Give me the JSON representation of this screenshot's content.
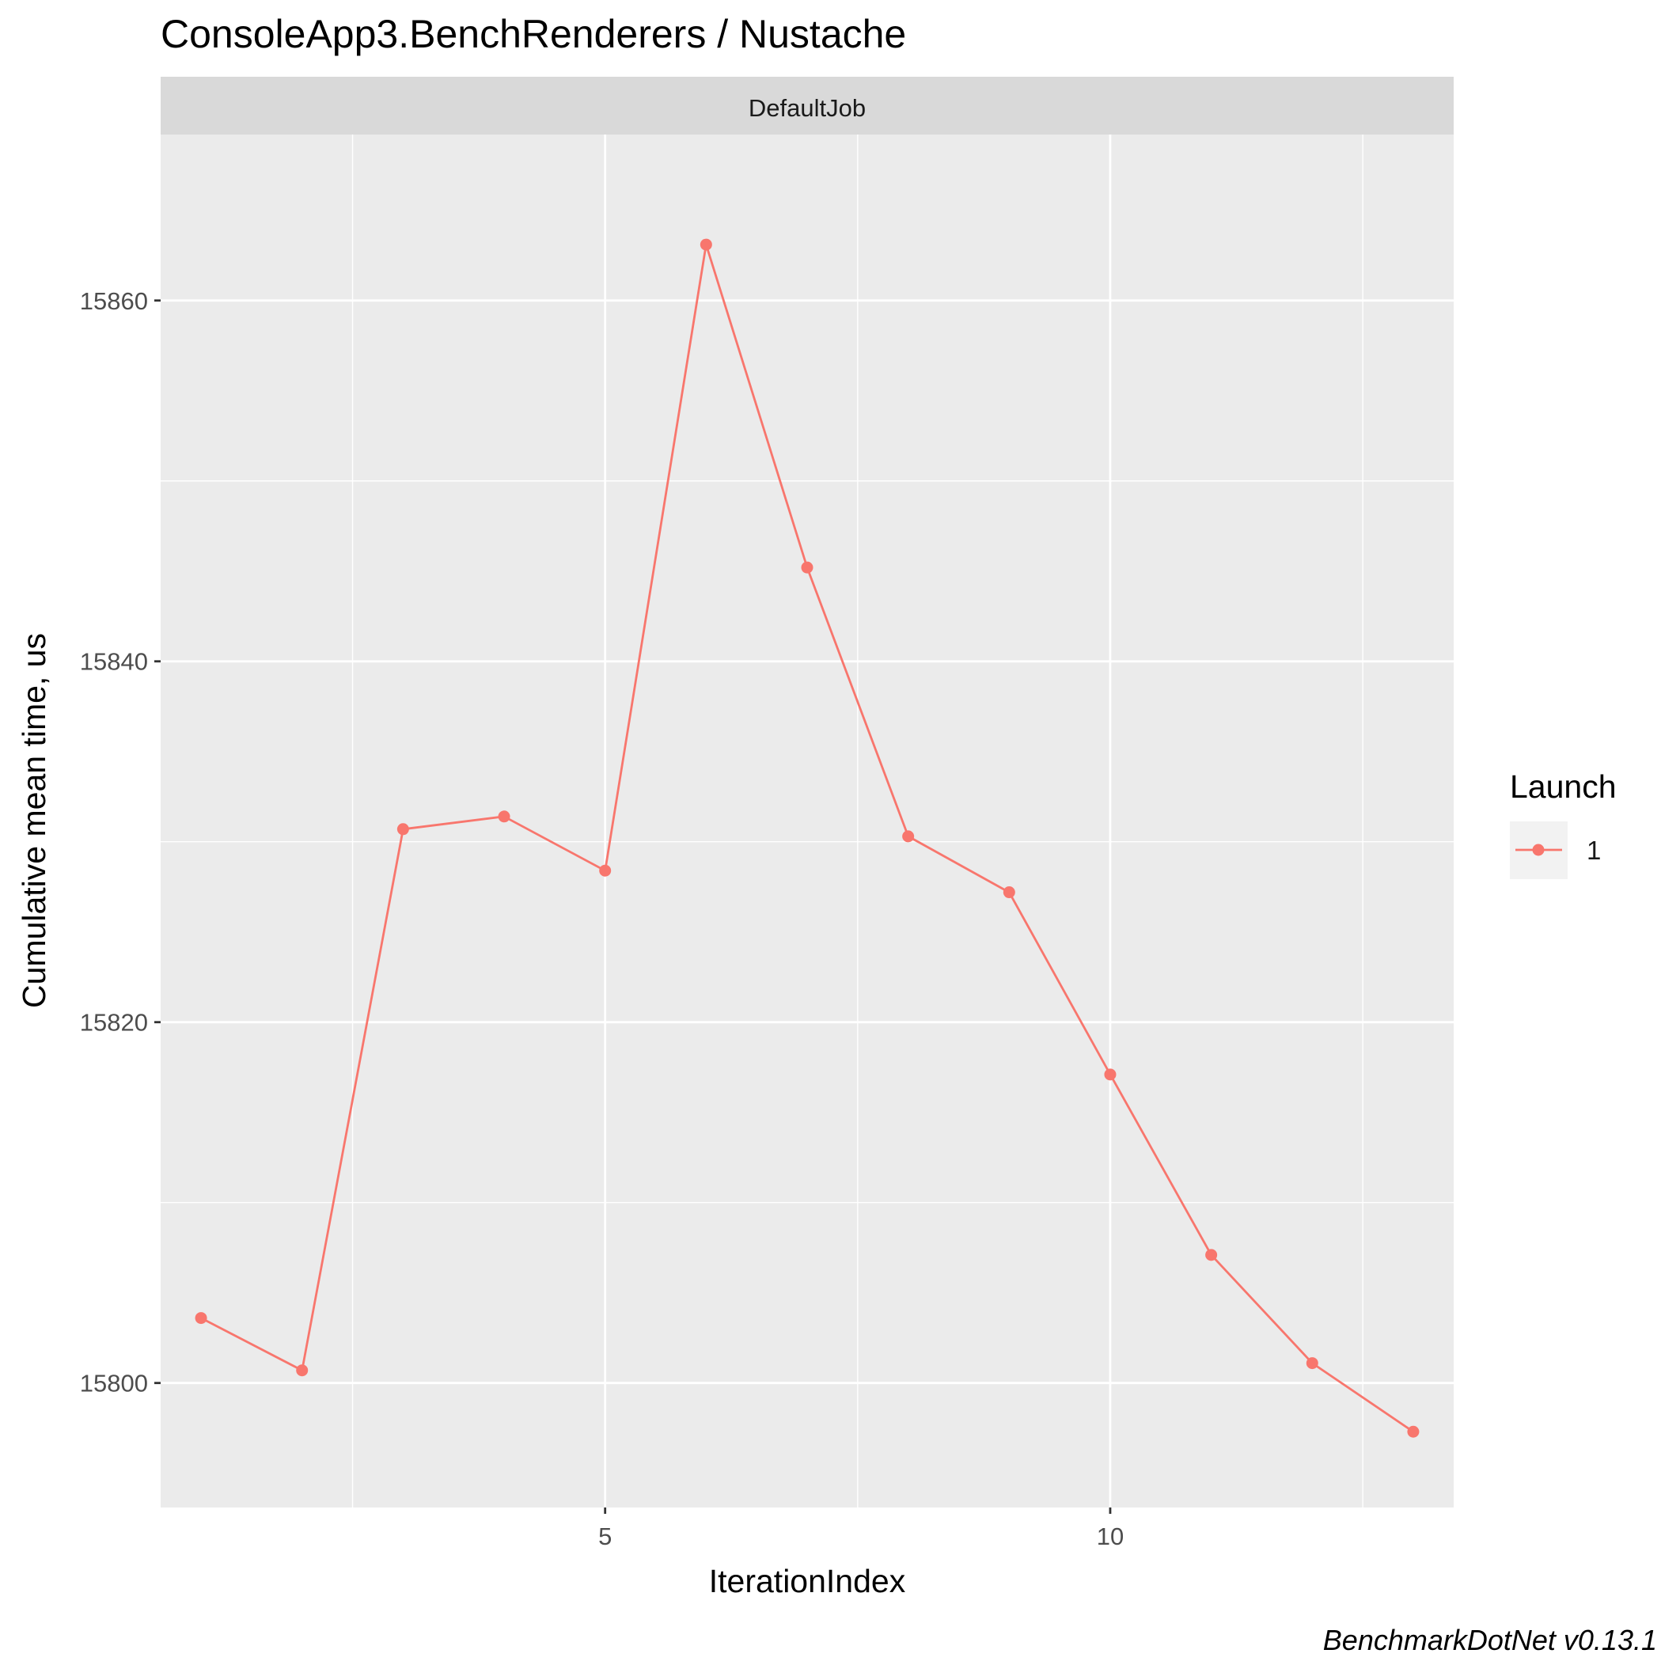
{
  "chart_data": {
    "type": "line",
    "title": "ConsoleApp3.BenchRenderers / Nustache",
    "facet_label": "DefaultJob",
    "xlabel": "IterationIndex",
    "ylabel": "Cumulative mean time, us",
    "xlim": [
      0.6,
      13.4
    ],
    "ylim": [
      15793.1,
      15869.2
    ],
    "x_ticks": [
      5,
      10
    ],
    "x_minor_ticks": [
      2.5,
      7.5,
      12.5
    ],
    "y_ticks": [
      15800,
      15820,
      15840,
      15860
    ],
    "y_minor_ticks": [
      15810,
      15830,
      15850
    ],
    "grid": true,
    "legend": {
      "title": "Launch",
      "position": "right"
    },
    "series": [
      {
        "name": "1",
        "color": "#F8766D",
        "x": [
          1,
          2,
          3,
          4,
          5,
          6,
          7,
          8,
          9,
          10,
          11,
          12,
          13
        ],
        "y": [
          15803.6,
          15800.7,
          15830.7,
          15831.4,
          15828.4,
          15863.1,
          15845.2,
          15830.3,
          15827.2,
          15817.1,
          15807.1,
          15801.1,
          15797.3
        ]
      }
    ],
    "panel_background": "#EBEBEB",
    "strip_background": "#D9D9D9",
    "caption": "BenchmarkDotNet v0.13.1"
  }
}
